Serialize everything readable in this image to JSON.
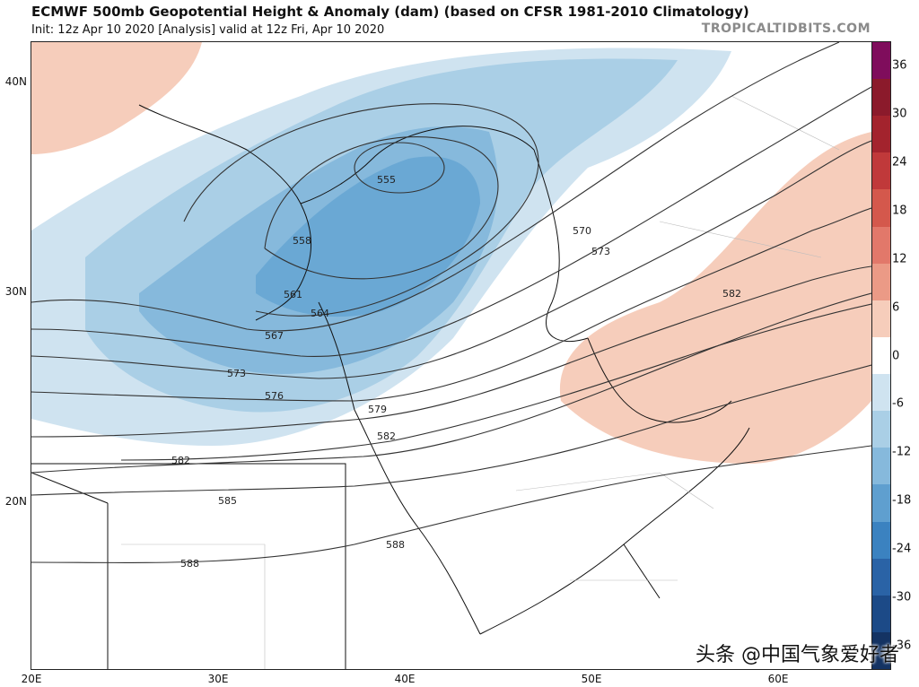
{
  "header": {
    "title": "ECMWF 500mb Geopotential Height & Anomaly (dam) (based on CFSR 1981-2010 Climatology)",
    "subtitle": "Init: 12z Apr 10 2020   [Analysis]   valid at 12z Fri, Apr 10 2020",
    "brand": "TROPICALTIDBITS.COM"
  },
  "axes": {
    "lat_labels": [
      "40N",
      "30N",
      "20N"
    ],
    "lon_labels": [
      "20E",
      "30E",
      "40E",
      "50E",
      "60E"
    ]
  },
  "contours": {
    "labels": [
      "555",
      "558",
      "561",
      "564",
      "567",
      "570",
      "573",
      "573",
      "576",
      "579",
      "582",
      "582",
      "582",
      "585",
      "588",
      "588"
    ]
  },
  "colorbar": {
    "labels": [
      "36",
      "30",
      "24",
      "18",
      "12",
      "6",
      "0",
      "-6",
      "-12",
      "-18",
      "-24",
      "-30",
      "-36"
    ],
    "colors": [
      "#7f0d5c",
      "#8b1a2b",
      "#a3232d",
      "#c0393a",
      "#d4584c",
      "#e2786a",
      "#eb9a86",
      "#f6cdbb",
      "#ffffff",
      "#cfe3f0",
      "#aacfe6",
      "#86b9dc",
      "#5f9fcf",
      "#3b82c0",
      "#2a63a6",
      "#1c4a87",
      "#143363"
    ]
  },
  "watermark": "头条 @中国气象爱好者"
}
